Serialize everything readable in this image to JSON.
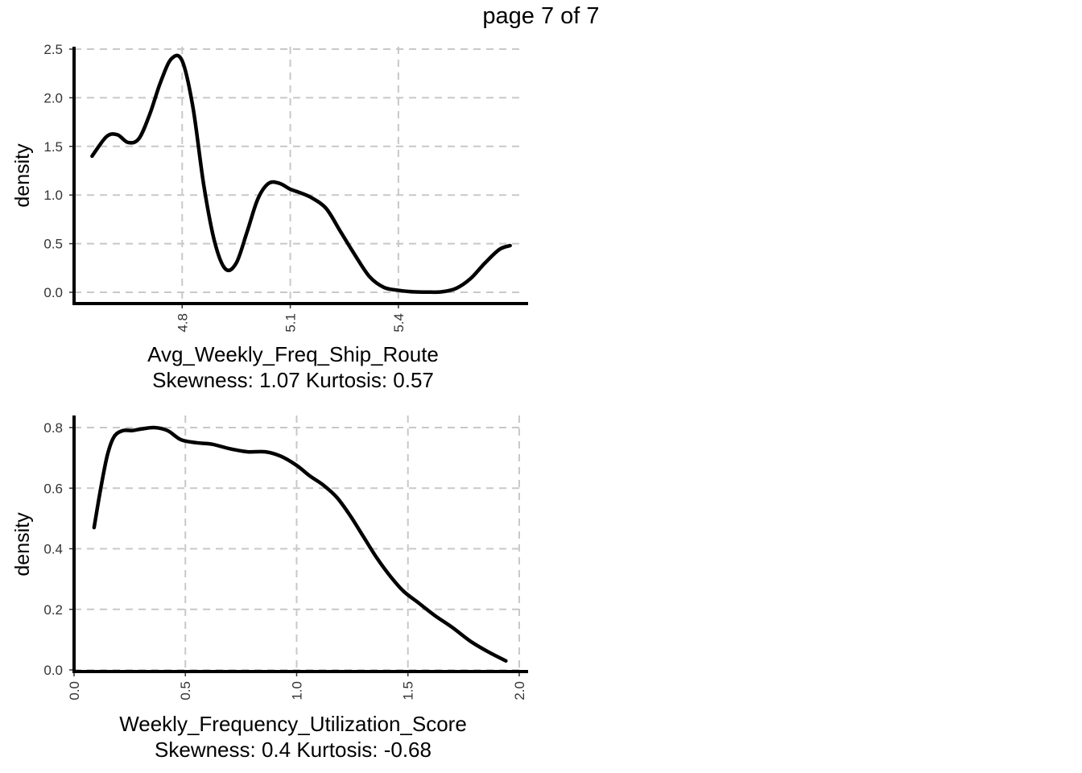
{
  "page_title": "page 7 of 7",
  "chart_data": [
    {
      "type": "line",
      "xlabel": "Avg_Weekly_Freq_Ship_Route",
      "subtitle": "Skewness: 1.07 Kurtosis: 0.57",
      "ylabel": "density",
      "xlim": [
        4.5,
        5.76
      ],
      "ylim": [
        0,
        2.5
      ],
      "xticks": [
        4.8,
        5.1,
        5.4
      ],
      "xtick_labels": [
        "4.8",
        "5.1",
        "5.4"
      ],
      "yticks": [
        0,
        0.5,
        1.0,
        1.5,
        2.0,
        2.5
      ],
      "ytick_labels": [
        "0.0",
        "0.5",
        "1.0",
        "1.5",
        "2.0",
        "2.5"
      ],
      "grid": true,
      "series": [
        {
          "color": "#000000",
          "x": [
            4.55,
            4.59,
            4.62,
            4.65,
            4.68,
            4.71,
            4.74,
            4.77,
            4.8,
            4.83,
            4.86,
            4.89,
            4.92,
            4.95,
            4.98,
            5.01,
            5.04,
            5.07,
            5.1,
            5.13,
            5.16,
            5.2,
            5.24,
            5.28,
            5.32,
            5.36,
            5.4,
            5.44,
            5.48,
            5.52,
            5.56,
            5.6,
            5.64,
            5.68,
            5.71
          ],
          "y": [
            1.4,
            1.6,
            1.62,
            1.54,
            1.58,
            1.83,
            2.16,
            2.4,
            2.38,
            1.9,
            1.1,
            0.52,
            0.24,
            0.3,
            0.62,
            0.96,
            1.12,
            1.12,
            1.06,
            1.02,
            0.97,
            0.86,
            0.62,
            0.38,
            0.16,
            0.05,
            0.02,
            0.005,
            0.002,
            0.005,
            0.04,
            0.14,
            0.3,
            0.44,
            0.48
          ]
        }
      ]
    },
    {
      "type": "line",
      "xlabel": "Weekly_Frequency_Utilization_Score",
      "subtitle": "Skewness: 0.4 Kurtosis: -0.68",
      "ylabel": "density",
      "xlim": [
        0.0,
        2.04
      ],
      "ylim": [
        0.0,
        0.8
      ],
      "xticks": [
        0.0,
        0.5,
        1.0,
        1.5,
        2.0
      ],
      "xtick_labels": [
        "0.0",
        "0.5",
        "1.0",
        "1.5",
        "2.0"
      ],
      "yticks": [
        0.0,
        0.2,
        0.4,
        0.6,
        0.8
      ],
      "ytick_labels": [
        "0.0",
        "0.2",
        "0.4",
        "0.6",
        "0.8"
      ],
      "grid": true,
      "series": [
        {
          "color": "#000000",
          "x": [
            0.09,
            0.12,
            0.15,
            0.18,
            0.22,
            0.26,
            0.3,
            0.36,
            0.42,
            0.48,
            0.55,
            0.62,
            0.7,
            0.78,
            0.86,
            0.93,
            1.0,
            1.06,
            1.12,
            1.18,
            1.24,
            1.3,
            1.36,
            1.42,
            1.48,
            1.55,
            1.62,
            1.7,
            1.78,
            1.86,
            1.94
          ],
          "y": [
            0.47,
            0.6,
            0.71,
            0.77,
            0.79,
            0.79,
            0.795,
            0.8,
            0.79,
            0.76,
            0.75,
            0.745,
            0.73,
            0.72,
            0.72,
            0.705,
            0.675,
            0.64,
            0.61,
            0.57,
            0.51,
            0.44,
            0.37,
            0.31,
            0.26,
            0.22,
            0.18,
            0.14,
            0.095,
            0.06,
            0.03
          ]
        }
      ]
    }
  ]
}
